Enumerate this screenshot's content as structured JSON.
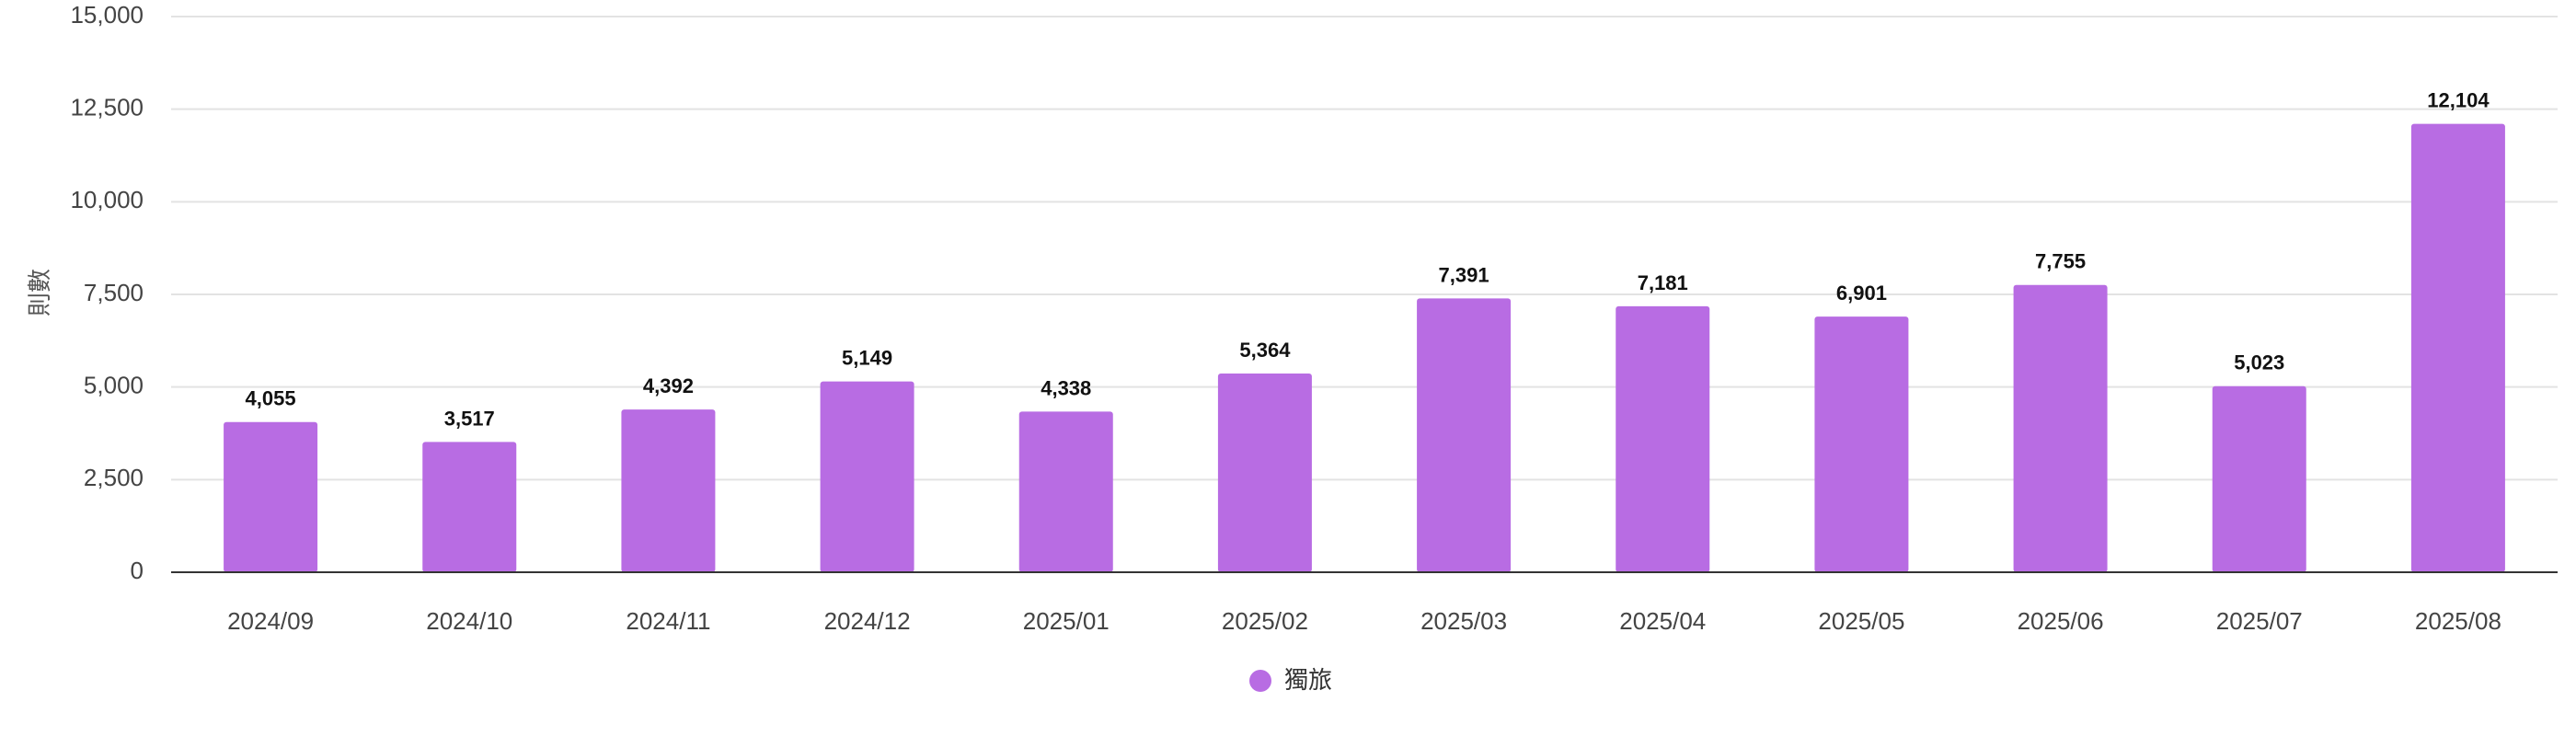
{
  "chart_data": {
    "type": "bar",
    "categories": [
      "2024/09",
      "2024/10",
      "2024/11",
      "2024/12",
      "2025/01",
      "2025/02",
      "2025/03",
      "2025/04",
      "2025/05",
      "2025/06",
      "2025/07",
      "2025/08"
    ],
    "series": [
      {
        "name": "獨旅",
        "values": [
          4055,
          3517,
          4392,
          5149,
          4338,
          5364,
          7391,
          7181,
          6901,
          7755,
          5023,
          12104
        ],
        "color": "#b86ce3"
      }
    ],
    "data_labels": [
      "4,055",
      "3,517",
      "4,392",
      "5,149",
      "4,338",
      "5,364",
      "7,391",
      "7,181",
      "6,901",
      "7,755",
      "5,023",
      "12,104"
    ],
    "ylabel": "則數",
    "ylim": [
      0,
      15000
    ],
    "yticks": [
      0,
      2500,
      5000,
      7500,
      10000,
      12500,
      15000
    ],
    "ytick_labels": [
      "0",
      "2,500",
      "5,000",
      "7,500",
      "10,000",
      "12,500",
      "15,000"
    ],
    "grid": true,
    "legend": {
      "position": "bottom-center",
      "label": "獨旅",
      "marker": "circle"
    }
  }
}
